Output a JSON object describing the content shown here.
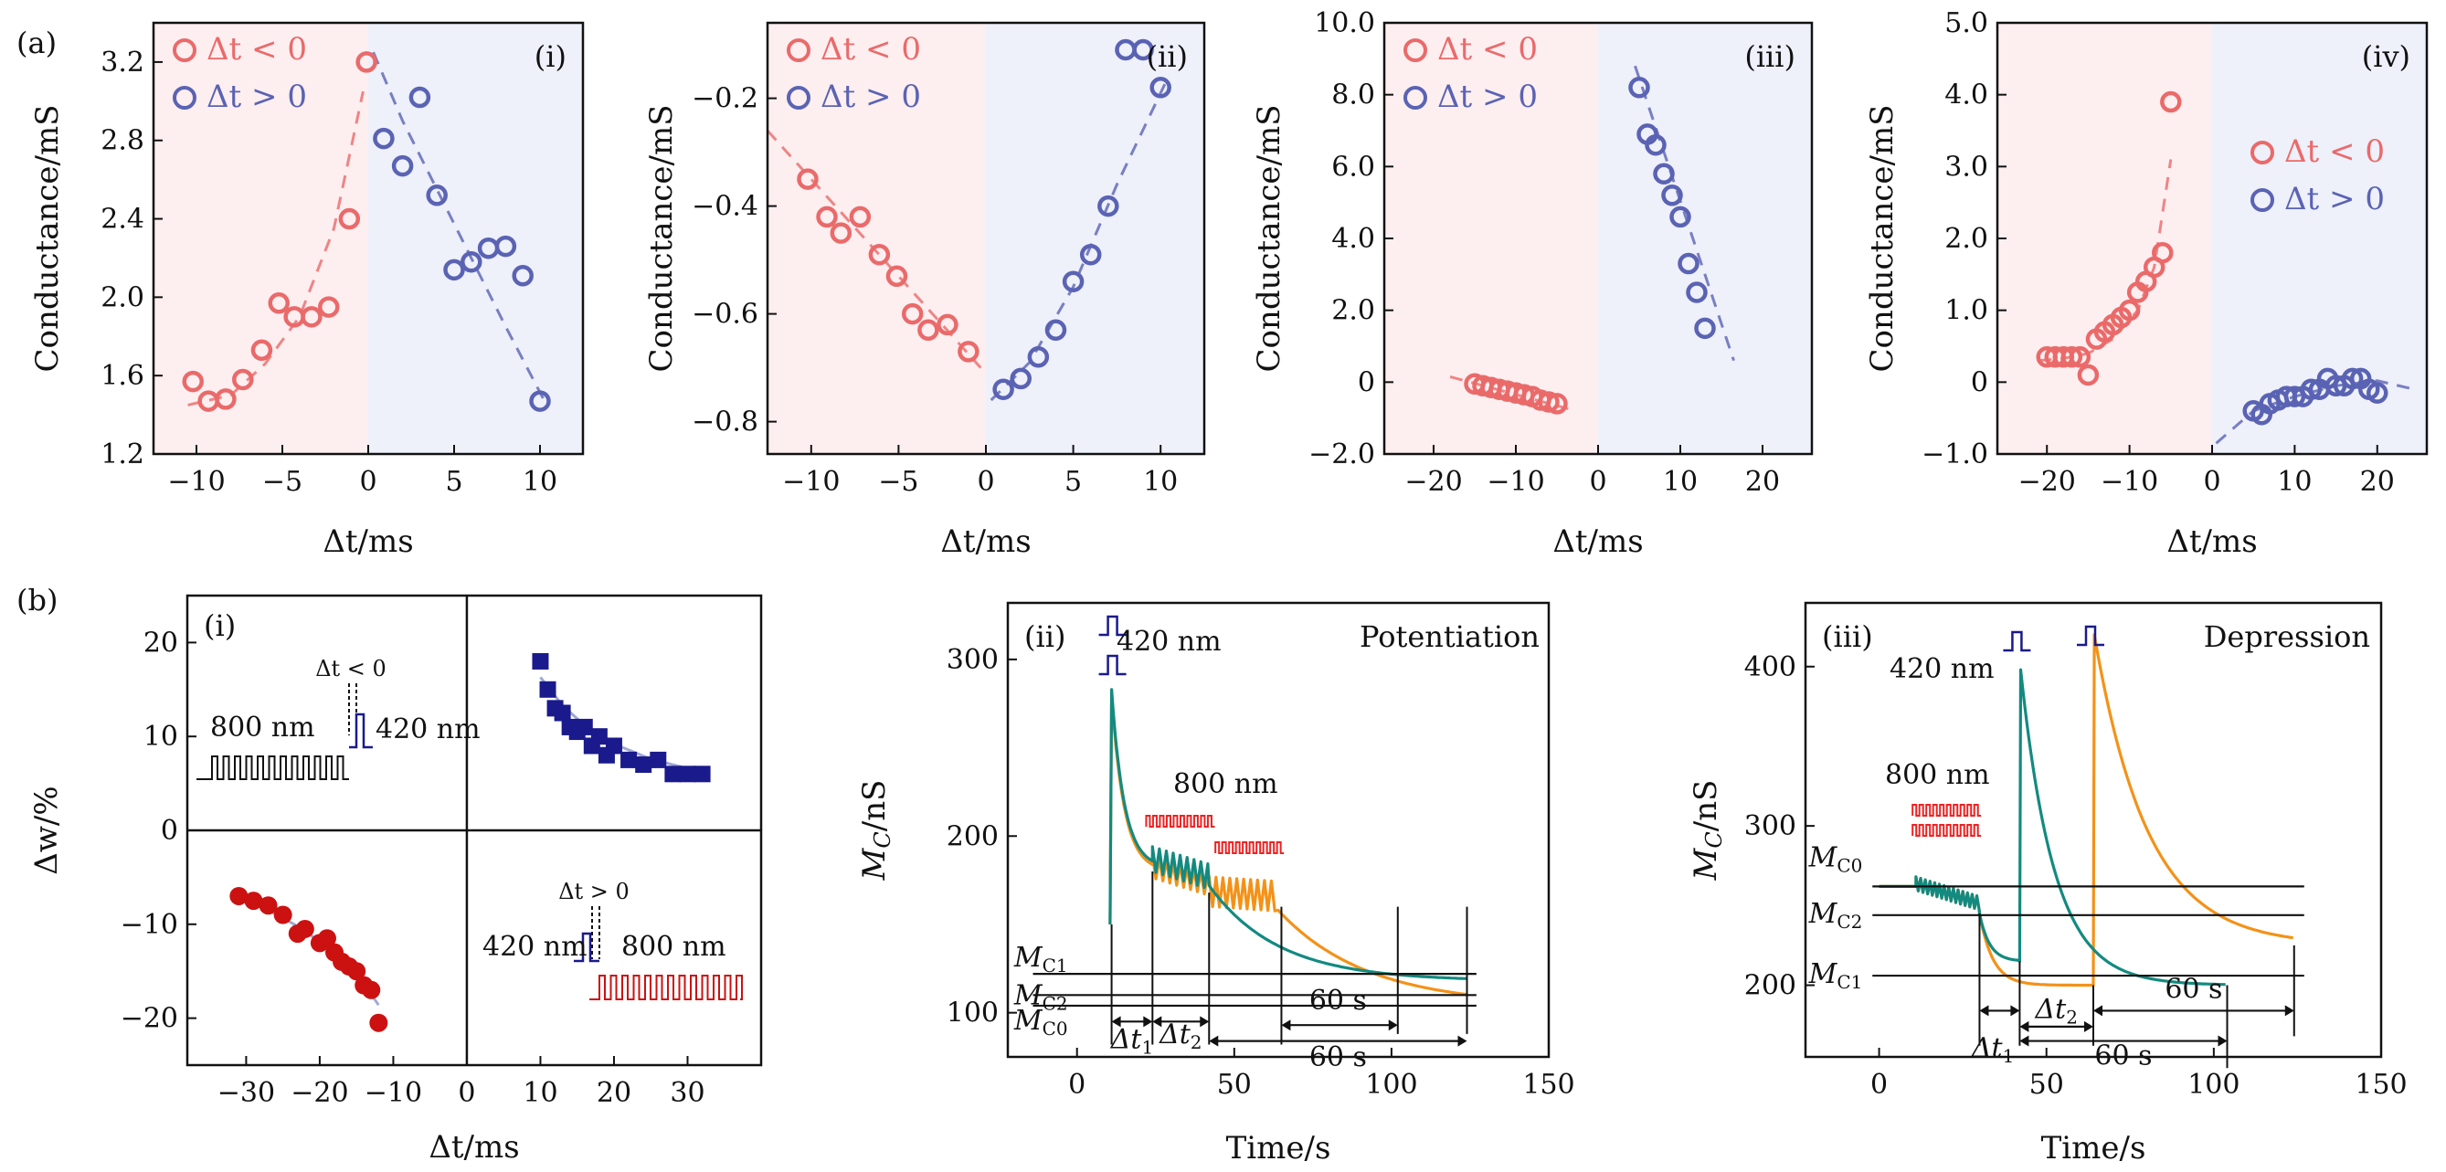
{
  "figure": {
    "part_a_label": "(a)",
    "part_b_label": "(b)"
  },
  "colors": {
    "red": "#ea6a6a",
    "blue": "#5a63b3",
    "pink_bg": "#fdeef0",
    "blue_bg": "#eef0fa",
    "navy": "#1a1a8c",
    "dark_red": "#cc1111",
    "teal": "#138a80",
    "orange": "#f39218",
    "pulse_red": "#ee2222"
  },
  "chart_data": [
    {
      "id": "a-i",
      "type": "scatter",
      "panel_label": "(i)",
      "xlabel": "Δt/ms",
      "ylabel": "Conductance/mS",
      "xlim": [
        -12.5,
        12.5
      ],
      "ylim": [
        1.2,
        3.4
      ],
      "xticks": [
        -10,
        -5,
        0,
        5,
        10
      ],
      "xtick_labels": [
        "−10",
        "−5",
        "0",
        "5",
        "10"
      ],
      "yticks": [
        1.2,
        1.6,
        2.0,
        2.4,
        2.8,
        3.2
      ],
      "ytick_labels": [
        "1.2",
        "1.6",
        "2.0",
        "2.4",
        "2.8",
        "3.2"
      ],
      "legend": {
        "position": "top-left",
        "neg": "Δt < 0",
        "pos": "Δt > 0"
      },
      "series": [
        {
          "name": "Δt < 0",
          "x": [
            -10.2,
            -9.3,
            -8.3,
            -7.3,
            -6.2,
            -5.2,
            -4.3,
            -3.3,
            -2.3,
            -1.1,
            -0.1
          ],
          "y": [
            1.57,
            1.47,
            1.48,
            1.58,
            1.73,
            1.97,
            1.9,
            1.9,
            1.95,
            2.4,
            3.2
          ]
        },
        {
          "name": "Δt > 0",
          "x": [
            0.9,
            2.0,
            3.0,
            4.0,
            5.0,
            6.0,
            7.0,
            8.0,
            9.0,
            10.0
          ],
          "y": [
            2.81,
            2.67,
            3.02,
            2.52,
            2.14,
            2.18,
            2.25,
            2.26,
            2.11,
            1.47
          ]
        }
      ],
      "fits": [
        {
          "x": [
            -10.5,
            -8,
            -6,
            -4,
            -2,
            -0.3
          ],
          "y": [
            1.45,
            1.5,
            1.66,
            1.9,
            2.35,
            3.05
          ]
        },
        {
          "x": [
            0.3,
            2,
            4,
            6,
            8,
            10.2
          ],
          "y": [
            3.25,
            2.9,
            2.55,
            2.2,
            1.85,
            1.48
          ]
        }
      ]
    },
    {
      "id": "a-ii",
      "type": "scatter",
      "panel_label": "(ii)",
      "xlabel": "Δt/ms",
      "ylabel": "Conductance/mS",
      "xlim": [
        -12.5,
        12.5
      ],
      "ylim": [
        -0.86,
        -0.06
      ],
      "xticks": [
        -10,
        -5,
        0,
        5,
        10
      ],
      "xtick_labels": [
        "−10",
        "−5",
        "0",
        "5",
        "10"
      ],
      "yticks": [
        -0.8,
        -0.6,
        -0.4,
        -0.2
      ],
      "ytick_labels": [
        "−0.8",
        "−0.6",
        "−0.4",
        "−0.2"
      ],
      "legend": {
        "position": "top-left",
        "neg": "Δt < 0",
        "pos": "Δt > 0"
      },
      "series": [
        {
          "name": "Δt < 0",
          "x": [
            -10.2,
            -9.1,
            -8.3,
            -7.2,
            -6.1,
            -5.1,
            -4.2,
            -3.3,
            -2.2,
            -1.0
          ],
          "y": [
            -0.35,
            -0.42,
            -0.45,
            -0.42,
            -0.49,
            -0.53,
            -0.6,
            -0.63,
            -0.62,
            -0.67
          ]
        },
        {
          "name": "Δt > 0",
          "x": [
            1.0,
            2.0,
            3.0,
            4.0,
            5.0,
            6.0,
            7.0,
            8.0,
            9.0,
            10.0
          ],
          "y": [
            -0.74,
            -0.72,
            -0.68,
            -0.63,
            -0.54,
            -0.49,
            -0.4,
            -0.11,
            -0.11,
            -0.18
          ]
        }
      ],
      "fits": [
        {
          "x": [
            -12.5,
            -10,
            -7.5,
            -5,
            -2.5,
            -0.3
          ],
          "y": [
            -0.26,
            -0.35,
            -0.44,
            -0.53,
            -0.62,
            -0.7
          ]
        },
        {
          "x": [
            0.3,
            2.5,
            5,
            7.5,
            10.3
          ],
          "y": [
            -0.76,
            -0.69,
            -0.55,
            -0.36,
            -0.17
          ]
        }
      ]
    },
    {
      "id": "a-iii",
      "type": "scatter",
      "panel_label": "(iii)",
      "xlabel": "Δt/ms",
      "ylabel": "Conductance/mS",
      "xlim": [
        -26,
        26
      ],
      "ylim": [
        -2.0,
        10.0
      ],
      "xticks": [
        -20,
        -10,
        0,
        10,
        20
      ],
      "xtick_labels": [
        "−20",
        "−10",
        "0",
        "10",
        "20"
      ],
      "yticks": [
        -2,
        0,
        2,
        4,
        6,
        8,
        10
      ],
      "ytick_labels": [
        "−2.0",
        "0",
        "2.0",
        "4.0",
        "6.0",
        "8.0",
        "10.0"
      ],
      "legend": {
        "position": "top-left",
        "neg": "Δt < 0",
        "pos": "Δt > 0"
      },
      "series": [
        {
          "name": "Δt < 0",
          "x": [
            -15,
            -14,
            -13,
            -12,
            -11,
            -10,
            -9,
            -8,
            -7,
            -6,
            -5
          ],
          "y": [
            -0.05,
            -0.1,
            -0.15,
            -0.2,
            -0.25,
            -0.3,
            -0.35,
            -0.4,
            -0.5,
            -0.55,
            -0.6
          ]
        },
        {
          "name": "Δt > 0",
          "x": [
            5,
            6,
            7,
            8,
            9,
            10,
            11,
            12,
            13
          ],
          "y": [
            8.2,
            6.9,
            6.6,
            5.8,
            5.2,
            4.6,
            3.3,
            2.5,
            1.5
          ]
        }
      ],
      "fits": [
        {
          "x": [
            -18,
            -3.5
          ],
          "y": [
            0.15,
            -0.75
          ]
        },
        {
          "x": [
            4.5,
            16.5
          ],
          "y": [
            8.8,
            0.6
          ]
        }
      ]
    },
    {
      "id": "a-iv",
      "type": "scatter",
      "panel_label": "(iv)",
      "xlabel": "Δt/ms",
      "ylabel": "Conductance/mS",
      "xlim": [
        -26,
        26
      ],
      "ylim": [
        -1.0,
        5.0
      ],
      "xticks": [
        -20,
        -10,
        0,
        10,
        20
      ],
      "xtick_labels": [
        "−20",
        "−10",
        "0",
        "10",
        "20"
      ],
      "yticks": [
        -1,
        0,
        1,
        2,
        3,
        4,
        5
      ],
      "ytick_labels": [
        "−1.0",
        "0",
        "1.0",
        "2.0",
        "3.0",
        "4.0",
        "5.0"
      ],
      "legend": {
        "position": "center-right",
        "neg": "Δt < 0",
        "pos": "Δt > 0"
      },
      "series": [
        {
          "name": "Δt < 0",
          "x": [
            -20,
            -19,
            -18,
            -17,
            -16,
            -15,
            -14,
            -13,
            -12,
            -11,
            -10,
            -9,
            -8,
            -7,
            -6,
            -5
          ],
          "y": [
            0.35,
            0.35,
            0.35,
            0.35,
            0.35,
            0.1,
            0.6,
            0.7,
            0.8,
            0.9,
            1.0,
            1.25,
            1.4,
            1.6,
            1.8,
            3.9
          ]
        },
        {
          "name": "Δt > 0",
          "x": [
            5,
            6,
            7,
            8,
            9,
            10,
            11,
            12,
            13,
            14,
            15,
            16,
            17,
            18,
            19,
            20
          ],
          "y": [
            -0.4,
            -0.45,
            -0.3,
            -0.25,
            -0.2,
            -0.2,
            -0.2,
            -0.1,
            -0.1,
            0.05,
            -0.05,
            -0.05,
            0.05,
            0.05,
            -0.1,
            -0.15
          ]
        }
      ],
      "fits": [
        {
          "x": [
            -21,
            -18,
            -15,
            -12,
            -9,
            -7,
            -5
          ],
          "y": [
            0.3,
            0.33,
            0.4,
            0.6,
            1.0,
            1.6,
            3.1
          ]
        },
        {
          "x": [
            0.5,
            5,
            10,
            15,
            20,
            24.5
          ],
          "y": [
            -0.85,
            -0.4,
            -0.2,
            -0.05,
            0.02,
            -0.1
          ]
        }
      ]
    },
    {
      "id": "b-i",
      "type": "scatter",
      "panel_label": "(i)",
      "xlabel": "Δt/ms",
      "ylabel": "Δw/%",
      "xlim": [
        -38,
        40
      ],
      "ylim": [
        -25,
        25
      ],
      "xticks": [
        -30,
        -20,
        -10,
        0,
        10,
        20,
        30
      ],
      "xtick_labels": [
        "−30",
        "−20",
        "−10",
        "0",
        "10",
        "20",
        "30"
      ],
      "yticks": [
        -20,
        -10,
        0,
        10,
        20
      ],
      "ytick_labels": [
        "−20",
        "−10",
        "0",
        "10",
        "20"
      ],
      "series": [
        {
          "name": "",
          "x": [
            10,
            11,
            12,
            13,
            14,
            15,
            16,
            17,
            18,
            19,
            20,
            22,
            24,
            26,
            28,
            30,
            32
          ],
          "y": [
            18,
            15,
            13,
            12.5,
            11,
            10.5,
            11,
            9,
            10,
            8,
            9,
            7.5,
            7,
            7.5,
            6,
            6,
            6
          ]
        },
        {
          "name": "",
          "x": [
            -31,
            -29,
            -27,
            -25,
            -23,
            -22,
            -20,
            -19,
            -18,
            -17,
            -16,
            -15,
            -14,
            -13,
            -12
          ],
          "y": [
            -7,
            -7.5,
            -8,
            -9,
            -11,
            -10.5,
            -12,
            -11.5,
            -13,
            -14,
            -14.5,
            -15,
            -16.5,
            -17,
            -20.5
          ]
        }
      ],
      "fits": [
        {
          "x": [
            10,
            13,
            16,
            20,
            25,
            30,
            32
          ],
          "y": [
            16.3,
            13.3,
            11.2,
            9.2,
            7.6,
            6.6,
            6.3
          ]
        },
        {
          "x": [
            -31,
            -27,
            -23,
            -19,
            -15,
            -12
          ],
          "y": [
            -7.2,
            -8.5,
            -10.2,
            -12.4,
            -15.2,
            -18.6
          ]
        }
      ],
      "annotations": {
        "top_dt": "Δt < 0",
        "top_800": "800 nm",
        "top_420": "420 nm",
        "bottom_dt": "Δt > 0",
        "bottom_420": "420 nm",
        "bottom_800": "800 nm"
      }
    },
    {
      "id": "b-ii",
      "type": "line",
      "panel_label": "(ii)",
      "mode_label": "Potentiation",
      "xlabel": "Time/s",
      "ylabel_main": "M",
      "ylabel_sub": "C",
      "ylabel_unit": "/nS",
      "xlim": [
        -22,
        150
      ],
      "ylim": [
        75,
        332
      ],
      "xticks": [
        0,
        50,
        100,
        150
      ],
      "xtick_labels": [
        "0",
        "50",
        "100",
        "150"
      ],
      "yticks": [
        100,
        200,
        300
      ],
      "ytick_labels": [
        "100",
        "200",
        "300"
      ],
      "levels": [
        {
          "label_main": "M",
          "label_sub": "C1",
          "y": 122
        },
        {
          "label_main": "M",
          "label_sub": "C2",
          "y": 110
        },
        {
          "label_main": "M",
          "label_sub": "C0",
          "y": 104
        }
      ],
      "pulse_labels": {
        "blue": "420 nm",
        "red": "800 nm"
      },
      "times": {
        "dt1": "Δt",
        "dt1_sub": "1",
        "dt2": "Δt",
        "dt2_sub": "2",
        "span_a": "60 s",
        "span_b": "60 s"
      },
      "key_times": [
        11,
        24,
        42,
        65,
        102,
        124
      ]
    },
    {
      "id": "b-iii",
      "type": "line",
      "panel_label": "(iii)",
      "mode_label": "Depression",
      "xlabel": "Time/s",
      "ylabel_main": "M",
      "ylabel_sub": "C",
      "ylabel_unit": "/nS",
      "xlim": [
        -22,
        150
      ],
      "ylim": [
        155,
        440
      ],
      "xticks": [
        0,
        50,
        100,
        150
      ],
      "xtick_labels": [
        "0",
        "50",
        "100",
        "150"
      ],
      "yticks": [
        200,
        300,
        400
      ],
      "ytick_labels": [
        "200",
        "300",
        "400"
      ],
      "levels": [
        {
          "label_main": "M",
          "label_sub": "C0",
          "y": 262
        },
        {
          "label_main": "M",
          "label_sub": "C2",
          "y": 244
        },
        {
          "label_main": "M",
          "label_sub": "C1",
          "y": 206
        }
      ],
      "pulse_labels": {
        "blue": "420 nm",
        "red": "800 nm"
      },
      "times": {
        "dt1": "Δt",
        "dt1_sub": "1",
        "dt2": "Δt",
        "dt2_sub": "2",
        "span_a": "60 s",
        "span_b": "60 s"
      },
      "key_times": [
        30,
        42,
        64,
        104,
        124
      ]
    }
  ]
}
